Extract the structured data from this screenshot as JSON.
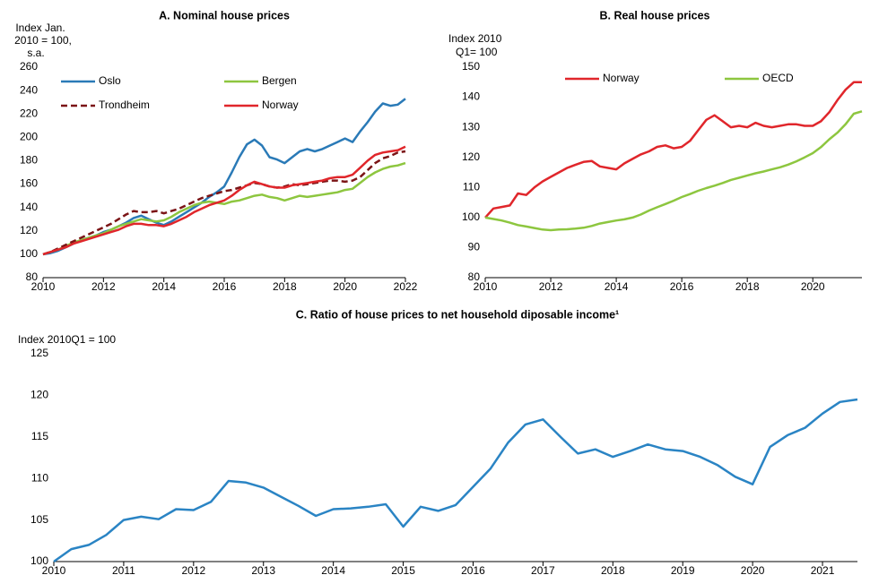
{
  "chart_data": [
    {
      "type": "line",
      "title": "A. Nominal house prices",
      "ylabel": [
        "Index Jan.",
        "2010 = 100,",
        "s.a."
      ],
      "x": [
        2010,
        2010.25,
        2010.5,
        2010.75,
        2011,
        2011.25,
        2011.5,
        2011.75,
        2012,
        2012.25,
        2012.5,
        2012.75,
        2013,
        2013.25,
        2013.5,
        2013.75,
        2014,
        2014.25,
        2014.5,
        2014.75,
        2015,
        2015.25,
        2015.5,
        2015.75,
        2016,
        2016.25,
        2016.5,
        2016.75,
        2017,
        2017.25,
        2017.5,
        2017.75,
        2018,
        2018.25,
        2018.5,
        2018.75,
        2019,
        2019.25,
        2019.5,
        2019.75,
        2020,
        2020.25,
        2020.5,
        2020.75,
        2021,
        2021.25,
        2021.5,
        2021.75,
        2022
      ],
      "series": [
        {
          "name": "Oslo",
          "color": "#2a7ab7",
          "linestyle": "solid",
          "values": [
            100,
            101,
            103,
            106,
            109,
            112,
            114,
            116,
            119,
            121,
            124,
            127,
            131,
            133,
            130,
            127,
            125,
            128,
            132,
            136,
            140,
            144,
            149,
            153,
            158,
            170,
            183,
            194,
            198,
            193,
            183,
            181,
            178,
            183,
            188,
            190,
            188,
            190,
            193,
            196,
            199,
            196,
            205,
            213,
            222,
            229,
            227,
            228,
            233
          ]
        },
        {
          "name": "Bergen",
          "color": "#8dc63f",
          "linestyle": "solid",
          "values": [
            100,
            102,
            104,
            107,
            110,
            112,
            114,
            116,
            118,
            121,
            124,
            126,
            128,
            130,
            129,
            128,
            129,
            132,
            136,
            139,
            142,
            144,
            145,
            144,
            143,
            145,
            146,
            148,
            150,
            151,
            149,
            148,
            146,
            148,
            150,
            149,
            150,
            151,
            152,
            153,
            155,
            156,
            161,
            166,
            170,
            173,
            175,
            176,
            178
          ]
        },
        {
          "name": "Trondheim",
          "color": "#7b1416",
          "linestyle": "dashed",
          "values": [
            100,
            102,
            105,
            108,
            111,
            114,
            117,
            120,
            123,
            126,
            130,
            134,
            137,
            136,
            136,
            137,
            135,
            137,
            139,
            142,
            145,
            148,
            150,
            152,
            154,
            155,
            157,
            159,
            161,
            160,
            158,
            157,
            158,
            160,
            159,
            160,
            161,
            162,
            163,
            163,
            162,
            163,
            166,
            172,
            178,
            182,
            184,
            187,
            188
          ]
        },
        {
          "name": "Norway",
          "color": "#e0262b",
          "linestyle": "solid",
          "values": [
            100,
            102,
            104,
            106,
            109,
            111,
            113,
            115,
            117,
            119,
            121,
            124,
            126,
            126,
            125,
            125,
            124,
            126,
            129,
            132,
            136,
            139,
            142,
            144,
            146,
            150,
            155,
            159,
            162,
            160,
            158,
            157,
            157,
            159,
            160,
            161,
            162,
            163,
            165,
            166,
            166,
            168,
            174,
            180,
            185,
            187,
            188,
            189,
            192
          ]
        }
      ],
      "xlim": [
        2010,
        2022
      ],
      "xticks": [
        2010,
        2012,
        2014,
        2016,
        2018,
        2020,
        2022
      ],
      "ylim": [
        80,
        260
      ],
      "yticks": [
        80,
        100,
        120,
        140,
        160,
        180,
        200,
        220,
        240,
        260
      ],
      "grid": false,
      "legend": "top"
    },
    {
      "type": "line",
      "title": "B. Real house prices",
      "ylabel": [
        "Index 2010",
        "Q1= 100"
      ],
      "x": [
        2010,
        2010.25,
        2010.5,
        2010.75,
        2011,
        2011.25,
        2011.5,
        2011.75,
        2012,
        2012.25,
        2012.5,
        2012.75,
        2013,
        2013.25,
        2013.5,
        2013.75,
        2014,
        2014.25,
        2014.5,
        2014.75,
        2015,
        2015.25,
        2015.5,
        2015.75,
        2016,
        2016.25,
        2016.5,
        2016.75,
        2017,
        2017.25,
        2017.5,
        2017.75,
        2018,
        2018.25,
        2018.5,
        2018.75,
        2019,
        2019.25,
        2019.5,
        2019.75,
        2020,
        2020.25,
        2020.5,
        2020.75,
        2021,
        2021.25,
        2021.5
      ],
      "series": [
        {
          "name": "Norway",
          "color": "#e0262b",
          "linestyle": "solid",
          "values": [
            100,
            103,
            103.5,
            104,
            108,
            107.5,
            110,
            112,
            113.5,
            115,
            116.5,
            117.5,
            118.5,
            118.8,
            117,
            116.5,
            116,
            118,
            119.5,
            121,
            122,
            123.5,
            124,
            123,
            123.5,
            125.5,
            129,
            132.5,
            134,
            132,
            130,
            130.5,
            130,
            131.5,
            130.5,
            130,
            130.5,
            131,
            131,
            130.5,
            130.5,
            132,
            135,
            139,
            142.5,
            145,
            145
          ]
        },
        {
          "name": "OECD",
          "color": "#8dc63f",
          "linestyle": "solid",
          "values": [
            100,
            99.5,
            99,
            98.3,
            97.5,
            97,
            96.5,
            96,
            95.8,
            96,
            96.1,
            96.3,
            96.6,
            97.2,
            98,
            98.5,
            99,
            99.4,
            100,
            101,
            102.3,
            103.4,
            104.5,
            105.6,
            106.8,
            107.8,
            108.9,
            109.8,
            110.6,
            111.5,
            112.5,
            113.2,
            114,
            114.7,
            115.3,
            116,
            116.7,
            117.6,
            118.7,
            120,
            121.4,
            123.4,
            126,
            128.2,
            131,
            134.5,
            135.3
          ]
        }
      ],
      "xlim": [
        2010,
        2021.5
      ],
      "xticks": [
        2010,
        2012,
        2014,
        2016,
        2018,
        2020
      ],
      "ylim": [
        80,
        150
      ],
      "yticks": [
        80,
        90,
        100,
        110,
        120,
        130,
        140,
        150
      ],
      "grid": false,
      "legend": "top"
    },
    {
      "type": "line",
      "title": "C. Ratio of house prices to net household diposable income¹",
      "ylabel": [
        "Index 2010Q1 = 100"
      ],
      "x": [
        2010,
        2010.25,
        2010.5,
        2010.75,
        2011,
        2011.25,
        2011.5,
        2011.75,
        2012,
        2012.25,
        2012.5,
        2012.75,
        2013,
        2013.25,
        2013.5,
        2013.75,
        2014,
        2014.25,
        2014.5,
        2014.75,
        2015,
        2015.25,
        2015.5,
        2015.75,
        2016,
        2016.25,
        2016.5,
        2016.75,
        2017,
        2017.25,
        2017.5,
        2017.75,
        2018,
        2018.25,
        2018.5,
        2018.75,
        2019,
        2019.25,
        2019.5,
        2019.75,
        2020,
        2020.25,
        2020.5,
        2020.75,
        2021,
        2021.25,
        2021.5
      ],
      "series": [
        {
          "color": "#2a84c4",
          "linestyle": "solid",
          "values": [
            100,
            101.5,
            102,
            103.2,
            105,
            105.4,
            105.1,
            106.3,
            106.2,
            107.2,
            109.7,
            109.5,
            108.9,
            107.8,
            106.7,
            105.5,
            106.3,
            106.4,
            106.6,
            106.9,
            104.2,
            106.6,
            106.1,
            106.8,
            109,
            111.2,
            114.3,
            116.5,
            117.1,
            115,
            113,
            113.5,
            112.6,
            113.3,
            114.1,
            113.5,
            113.3,
            112.6,
            111.6,
            110.2,
            109.3,
            113.8,
            115.2,
            116.1,
            117.8,
            119.2,
            119.5
          ]
        }
      ],
      "xlim": [
        2010,
        2021.5
      ],
      "xticks": [
        2010,
        2011,
        2012,
        2013,
        2014,
        2015,
        2016,
        2017,
        2018,
        2019,
        2020,
        2021
      ],
      "ylim": [
        100,
        125
      ],
      "yticks": [
        100,
        105,
        110,
        115,
        120,
        125
      ],
      "grid": false
    }
  ]
}
